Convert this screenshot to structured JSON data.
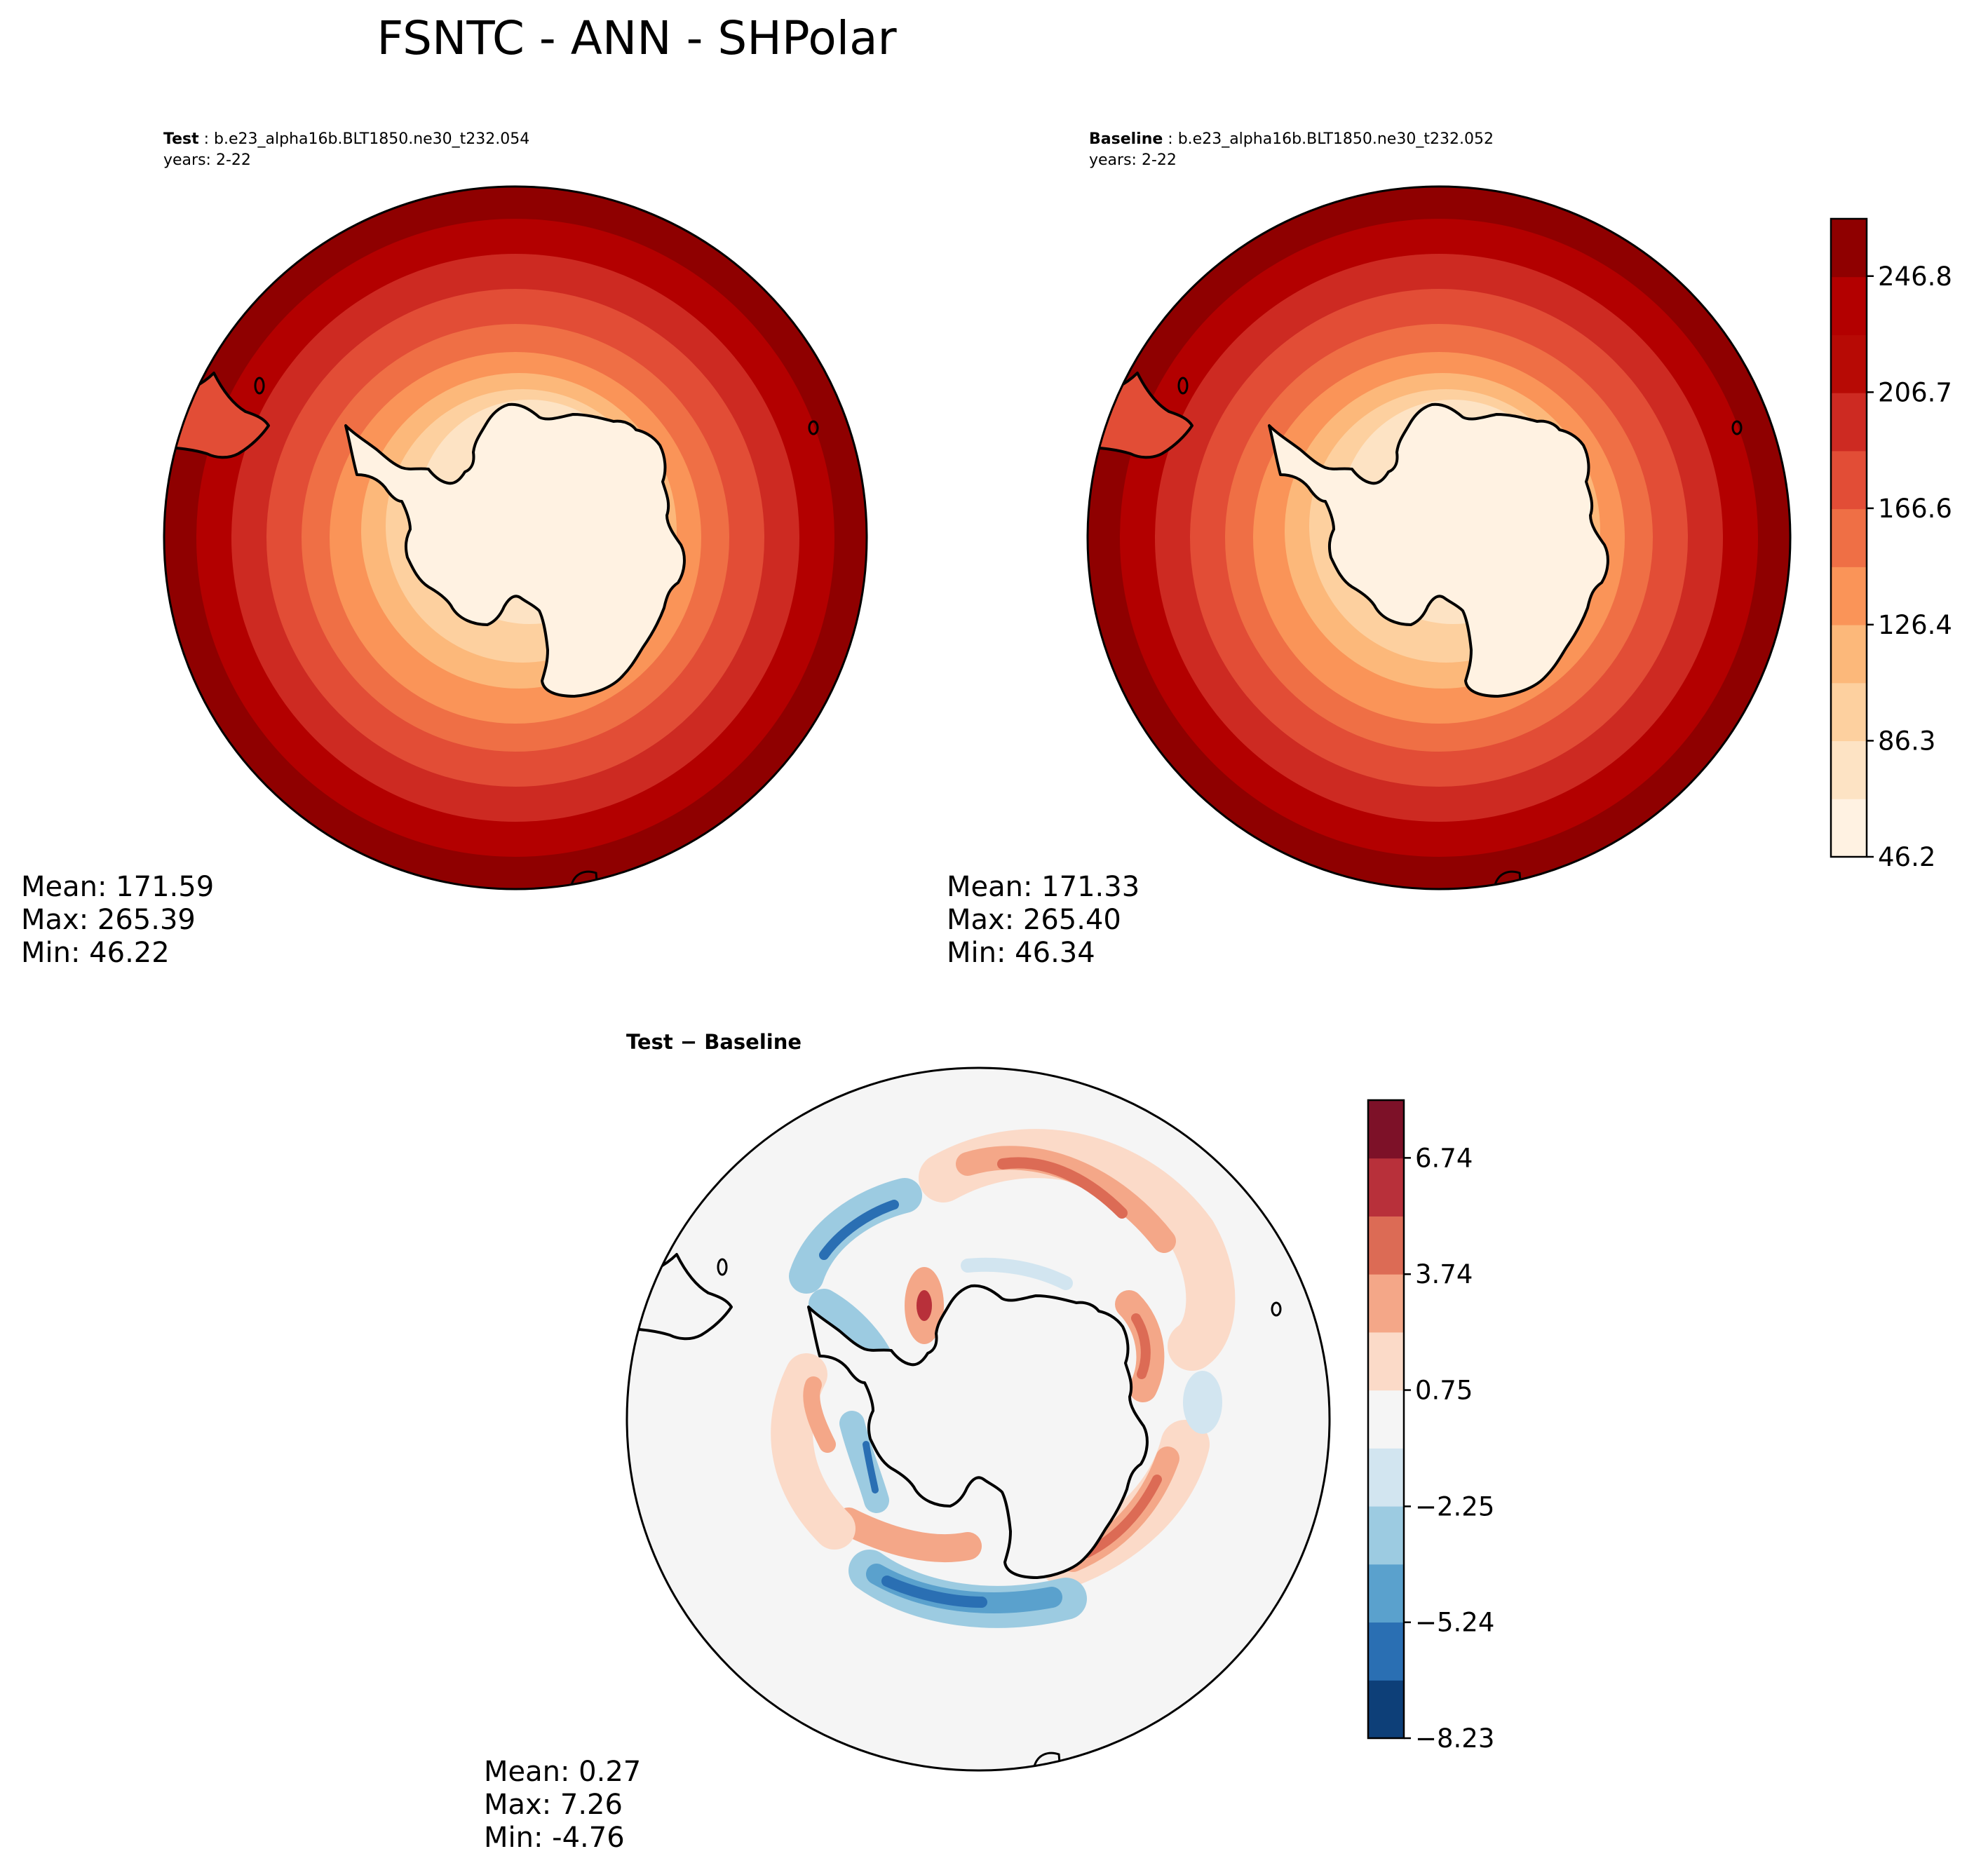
{
  "figure": {
    "title": "FSNTC - ANN - SHPolar"
  },
  "chart_data": [
    {
      "type": "heatmap",
      "projection": "south-polar-stereographic",
      "subplot_label": "Test",
      "case_name": "b.e23_alpha16b.BLT1850.ne30_t232.054",
      "years": "years: 2-22",
      "stats": {
        "mean": "Mean: 171.59",
        "max": "Max: 265.39",
        "min": "Min: 46.22"
      },
      "colormap": "OrRd",
      "colorbar": "shared-with-baseline"
    },
    {
      "type": "heatmap",
      "projection": "south-polar-stereographic",
      "subplot_label": "Baseline",
      "case_name": "b.e23_alpha16b.BLT1850.ne30_t232.052",
      "years": "years: 2-22",
      "stats": {
        "mean": "Mean: 171.33",
        "max": "Max: 265.40",
        "min": "Min: 46.34"
      },
      "colormap": "OrRd",
      "colorbar": {
        "range": [
          46.2,
          266.6
        ],
        "n_levels": 11,
        "tick_values": [
          46.2,
          86.3,
          126.4,
          166.6,
          206.7,
          246.8
        ],
        "tick_labels": [
          "46.2",
          "86.3",
          "126.4",
          "166.6",
          "206.7",
          "246.8"
        ],
        "colors": [
          "#fff2e2",
          "#fde3c4",
          "#fdd09f",
          "#fcb87a",
          "#fa9458",
          "#ef6f45",
          "#e24d36",
          "#cd2a22",
          "#b70a05",
          "#b30000",
          "#8f0000"
        ]
      }
    },
    {
      "type": "heatmap",
      "projection": "south-polar-stereographic",
      "subplot_label": "Test − Baseline",
      "stats": {
        "mean": "Mean:  0.27",
        "max": "Max:  7.26",
        "min": "Min: -4.76"
      },
      "colormap": "RdBu_r",
      "colorbar": {
        "range": [
          -8.23,
          8.23
        ],
        "n_levels": 11,
        "tick_values": [
          -8.23,
          -5.24,
          -2.25,
          0.75,
          3.74,
          6.74
        ],
        "tick_labels": [
          "−8.23",
          "−5.24",
          "−2.25",
          "0.75",
          "3.74",
          "6.74"
        ],
        "colors": [
          "#0d3f78",
          "#2a6fb3",
          "#5aa1cd",
          "#9ccbe1",
          "#d2e5f0",
          "#f5f5f5",
          "#fbdac8",
          "#f4a788",
          "#dc6b55",
          "#b8303a",
          "#7d1128"
        ]
      }
    }
  ]
}
